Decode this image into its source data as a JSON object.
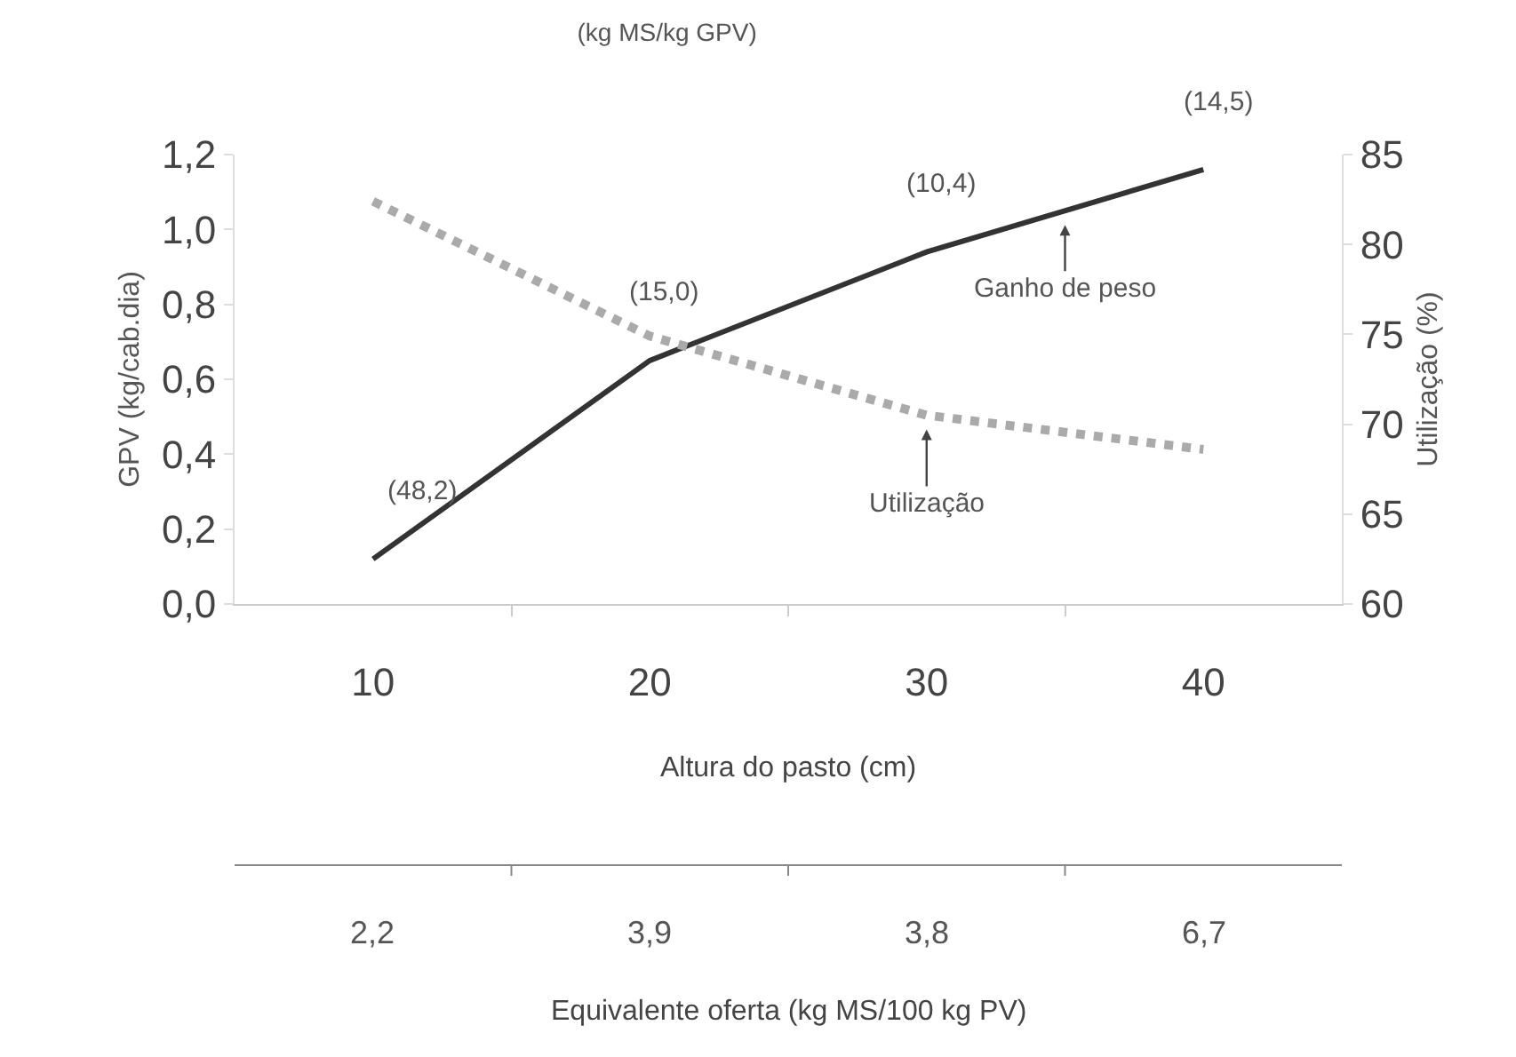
{
  "chart_data": {
    "type": "line",
    "title": "(kg MS/kg GPV)",
    "xlabel": "Altura do pasto (cm)",
    "ylabel": "GPV (kg/cab.dia)",
    "y2label": "Utilização (%)",
    "x2label": "Equivalente oferta (kg MS/100 kg PV)",
    "categories": [
      "10",
      "20",
      "30",
      "40"
    ],
    "series": [
      {
        "name": "Ganho de peso",
        "color": "#333333",
        "line_style": "solid",
        "values": [
          0.12,
          0.65,
          0.94,
          1.16
        ]
      },
      {
        "name": "Utilização",
        "color": "#aaaaaa",
        "line_style": "dotted",
        "axis": "y2",
        "values": [
          82.4,
          74.9,
          70.5,
          68.6
        ]
      }
    ],
    "ylim": [
      0,
      1.2
    ],
    "yticks": [
      {
        "value": 0,
        "label": "0,0"
      },
      {
        "value": 0.2,
        "label": "0,2"
      },
      {
        "value": 0.4,
        "label": "0,4"
      },
      {
        "value": 0.6,
        "label": "0,6"
      },
      {
        "value": 0.8,
        "label": "0,8"
      },
      {
        "value": 1.0,
        "label": "1,0"
      },
      {
        "value": 1.2,
        "label": "1,2"
      }
    ],
    "y2lim": [
      60,
      85
    ],
    "y2ticks": [
      60,
      65,
      70,
      75,
      80,
      85
    ],
    "annotations": [
      {
        "text": "(48,2)",
        "x": "10",
        "y": 0.12
      },
      {
        "text": "(15,0)",
        "x": "20",
        "y": 0.65
      },
      {
        "text": "(10,4)",
        "x": "30",
        "y": 0.94
      },
      {
        "text": "(14,5)",
        "x": "40",
        "y": 1.16
      },
      "2,2",
      "3,9",
      "3,8",
      "6,7"
    ],
    "legend": false,
    "grid": false
  }
}
